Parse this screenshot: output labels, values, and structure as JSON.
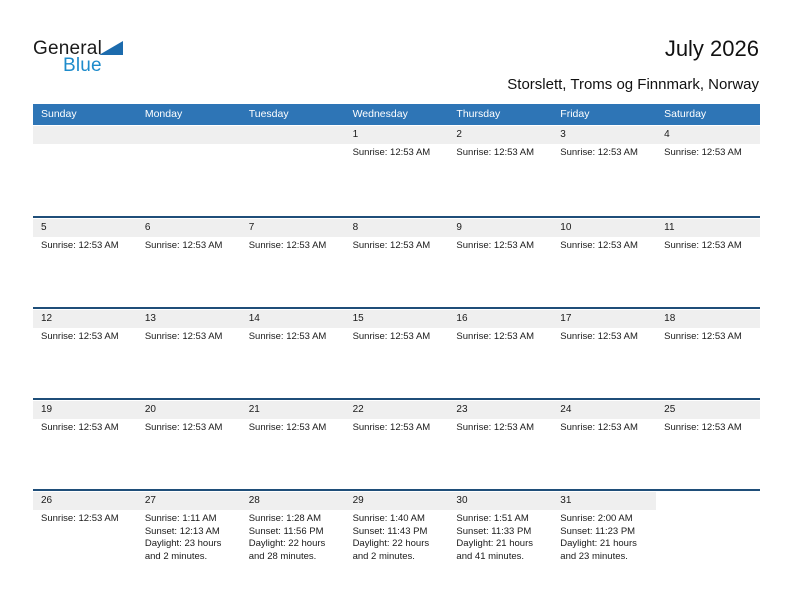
{
  "logo": {
    "part1": "General",
    "part2": "Blue"
  },
  "header": {
    "title": "July 2026",
    "subtitle": "Storslett, Troms og Finnmark, Norway"
  },
  "weekday_headers": [
    "Sunday",
    "Monday",
    "Tuesday",
    "Wednesday",
    "Thursday",
    "Friday",
    "Saturday"
  ],
  "colors": {
    "header_bg": "#2E75B6",
    "separator": "#1F4E79",
    "strip_bg": "#EFEFEF",
    "brand_blue": "#1D8BCB",
    "brand_triangle": "#1C6BAD",
    "header_text": "#FFFFFF",
    "body_text": "#1A1A1A"
  },
  "weeks": [
    {
      "days": [
        {
          "num": "",
          "shaded": true,
          "lines": []
        },
        {
          "num": "",
          "shaded": true,
          "lines": []
        },
        {
          "num": "",
          "shaded": true,
          "lines": []
        },
        {
          "num": "1",
          "shaded": true,
          "lines": [
            "Sunrise: 12:53 AM"
          ]
        },
        {
          "num": "2",
          "shaded": true,
          "lines": [
            "Sunrise: 12:53 AM"
          ]
        },
        {
          "num": "3",
          "shaded": true,
          "lines": [
            "Sunrise: 12:53 AM"
          ]
        },
        {
          "num": "4",
          "shaded": true,
          "lines": [
            "Sunrise: 12:53 AM"
          ]
        }
      ]
    },
    {
      "days": [
        {
          "num": "5",
          "shaded": true,
          "lines": [
            "Sunrise: 12:53 AM"
          ]
        },
        {
          "num": "6",
          "shaded": true,
          "lines": [
            "Sunrise: 12:53 AM"
          ]
        },
        {
          "num": "7",
          "shaded": true,
          "lines": [
            "Sunrise: 12:53 AM"
          ]
        },
        {
          "num": "8",
          "shaded": true,
          "lines": [
            "Sunrise: 12:53 AM"
          ]
        },
        {
          "num": "9",
          "shaded": true,
          "lines": [
            "Sunrise: 12:53 AM"
          ]
        },
        {
          "num": "10",
          "shaded": true,
          "lines": [
            "Sunrise: 12:53 AM"
          ]
        },
        {
          "num": "11",
          "shaded": true,
          "lines": [
            "Sunrise: 12:53 AM"
          ]
        }
      ]
    },
    {
      "days": [
        {
          "num": "12",
          "shaded": true,
          "lines": [
            "Sunrise: 12:53 AM"
          ]
        },
        {
          "num": "13",
          "shaded": true,
          "lines": [
            "Sunrise: 12:53 AM"
          ]
        },
        {
          "num": "14",
          "shaded": true,
          "lines": [
            "Sunrise: 12:53 AM"
          ]
        },
        {
          "num": "15",
          "shaded": true,
          "lines": [
            "Sunrise: 12:53 AM"
          ]
        },
        {
          "num": "16",
          "shaded": true,
          "lines": [
            "Sunrise: 12:53 AM"
          ]
        },
        {
          "num": "17",
          "shaded": true,
          "lines": [
            "Sunrise: 12:53 AM"
          ]
        },
        {
          "num": "18",
          "shaded": true,
          "lines": [
            "Sunrise: 12:53 AM"
          ]
        }
      ]
    },
    {
      "days": [
        {
          "num": "19",
          "shaded": true,
          "lines": [
            "Sunrise: 12:53 AM"
          ]
        },
        {
          "num": "20",
          "shaded": true,
          "lines": [
            "Sunrise: 12:53 AM"
          ]
        },
        {
          "num": "21",
          "shaded": true,
          "lines": [
            "Sunrise: 12:53 AM"
          ]
        },
        {
          "num": "22",
          "shaded": true,
          "lines": [
            "Sunrise: 12:53 AM"
          ]
        },
        {
          "num": "23",
          "shaded": true,
          "lines": [
            "Sunrise: 12:53 AM"
          ]
        },
        {
          "num": "24",
          "shaded": true,
          "lines": [
            "Sunrise: 12:53 AM"
          ]
        },
        {
          "num": "25",
          "shaded": true,
          "lines": [
            "Sunrise: 12:53 AM"
          ]
        }
      ]
    },
    {
      "days": [
        {
          "num": "26",
          "shaded": true,
          "lines": [
            "Sunrise: 12:53 AM"
          ]
        },
        {
          "num": "27",
          "shaded": true,
          "lines": [
            "Sunrise: 1:11 AM",
            "Sunset: 12:13 AM",
            "Daylight: 23 hours and 2 minutes."
          ]
        },
        {
          "num": "28",
          "shaded": true,
          "lines": [
            "Sunrise: 1:28 AM",
            "Sunset: 11:56 PM",
            "Daylight: 22 hours and 28 minutes."
          ]
        },
        {
          "num": "29",
          "shaded": true,
          "lines": [
            "Sunrise: 1:40 AM",
            "Sunset: 11:43 PM",
            "Daylight: 22 hours and 2 minutes."
          ]
        },
        {
          "num": "30",
          "shaded": true,
          "lines": [
            "Sunrise: 1:51 AM",
            "Sunset: 11:33 PM",
            "Daylight: 21 hours and 41 minutes."
          ]
        },
        {
          "num": "31",
          "shaded": true,
          "lines": [
            "Sunrise: 2:00 AM",
            "Sunset: 11:23 PM",
            "Daylight: 21 hours and 23 minutes."
          ]
        },
        {
          "num": "",
          "shaded": false,
          "lines": []
        }
      ]
    }
  ]
}
